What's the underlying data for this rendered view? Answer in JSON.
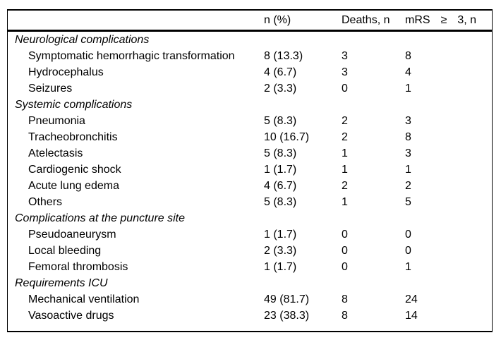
{
  "colors": {
    "background": "#ffffff",
    "text": "#000000",
    "rule": "#000000"
  },
  "table": {
    "columns": {
      "label": "",
      "n_percent": "n (%)",
      "deaths": "Deaths, n",
      "mrs_full": "mRS ≥ 3, n",
      "mrs_parts": [
        "mRS",
        "≥",
        "3, n"
      ]
    },
    "rows": [
      {
        "type": "section",
        "label": "Neurological complications",
        "n": "",
        "deaths": "",
        "mrs": ""
      },
      {
        "type": "item",
        "label": "Symptomatic hemorrhagic transformation",
        "n": "8 (13.3)",
        "deaths": "3",
        "mrs": "8"
      },
      {
        "type": "item",
        "label": "Hydrocephalus",
        "n": "4 (6.7)",
        "deaths": "3",
        "mrs": "4"
      },
      {
        "type": "item",
        "label": "Seizures",
        "n": "2 (3.3)",
        "deaths": "0",
        "mrs": "1"
      },
      {
        "type": "section",
        "label": "Systemic complications",
        "n": "",
        "deaths": "",
        "mrs": ""
      },
      {
        "type": "item",
        "label": "Pneumonia",
        "n": "5 (8.3)",
        "deaths": "2",
        "mrs": "3"
      },
      {
        "type": "item",
        "label": "Tracheobronchitis",
        "n": "10 (16.7)",
        "deaths": "2",
        "mrs": "8"
      },
      {
        "type": "item",
        "label": "Atelectasis",
        "n": "5 (8.3)",
        "deaths": "1",
        "mrs": "3"
      },
      {
        "type": "item",
        "label": "Cardiogenic shock",
        "n": "1 (1.7)",
        "deaths": "1",
        "mrs": "1"
      },
      {
        "type": "item",
        "label": "Acute lung edema",
        "n": "4 (6.7)",
        "deaths": "2",
        "mrs": "2"
      },
      {
        "type": "item",
        "label": "Others",
        "n": "5 (8.3)",
        "deaths": "1",
        "mrs": "5"
      },
      {
        "type": "section",
        "label": "Complications at the puncture site",
        "n": "",
        "deaths": "",
        "mrs": ""
      },
      {
        "type": "item",
        "label": "Pseudoaneurysm",
        "n": "1 (1.7)",
        "deaths": "0",
        "mrs": "0"
      },
      {
        "type": "item",
        "label": "Local bleeding",
        "n": "2 (3.3)",
        "deaths": "0",
        "mrs": "0"
      },
      {
        "type": "item",
        "label": "Femoral thrombosis",
        "n": "1 (1.7)",
        "deaths": "0",
        "mrs": "1"
      },
      {
        "type": "section",
        "label": "Requirements ICU",
        "n": "",
        "deaths": "",
        "mrs": ""
      },
      {
        "type": "item",
        "label": "Mechanical ventilation",
        "n": "49 (81.7)",
        "deaths": "8",
        "mrs": "24"
      },
      {
        "type": "item",
        "label": "Vasoactive drugs",
        "n": "23 (38.3)",
        "deaths": "8",
        "mrs": "14"
      }
    ]
  }
}
